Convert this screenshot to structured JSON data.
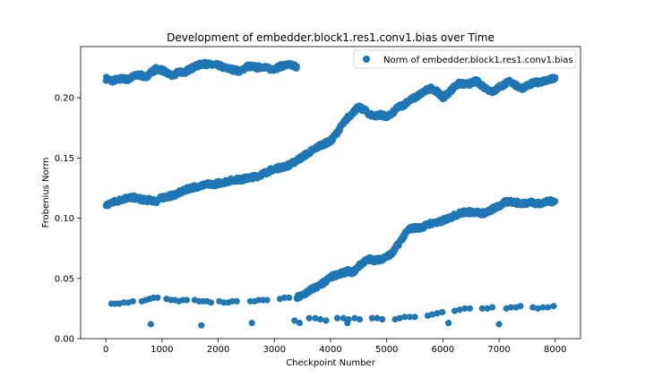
{
  "chart_data": {
    "type": "scatter",
    "title": "Development of embedder.block1.res1.conv1.bias over Time",
    "xlabel": "Checkpoint Number",
    "ylabel": "Frobenius Norm",
    "xlim": [
      -450,
      8450
    ],
    "ylim": [
      0.0,
      0.2425
    ],
    "xticks": [
      0,
      1000,
      2000,
      3000,
      4000,
      5000,
      6000,
      7000,
      8000
    ],
    "yticks": [
      0.0,
      0.05,
      0.1,
      0.15,
      0.2
    ],
    "ytick_labels": [
      "0.00",
      "0.05",
      "0.10",
      "0.15",
      "0.20"
    ],
    "grid": false,
    "legend_position": "top-right",
    "series": [
      {
        "name": "Norm of embedder.block1.res1.conv1.bias",
        "color": "#1f77b4",
        "dense_bands": [
          {
            "x": [
              0,
              100,
              200,
              300,
              400,
              500,
              600,
              700,
              800,
              900,
              1000,
              1100,
              1200,
              1300,
              1400,
              1500,
              1600,
              1700,
              1800,
              1900,
              2000,
              2100,
              2200,
              2300,
              2400,
              2500,
              2600,
              2700,
              2800,
              2900,
              3000,
              3100,
              3200,
              3300,
              3400
            ],
            "y": [
              0.216,
              0.214,
              0.215,
              0.216,
              0.215,
              0.218,
              0.219,
              0.217,
              0.221,
              0.224,
              0.223,
              0.22,
              0.218,
              0.222,
              0.221,
              0.224,
              0.226,
              0.228,
              0.228,
              0.227,
              0.227,
              0.225,
              0.224,
              0.223,
              0.222,
              0.226,
              0.226,
              0.225,
              0.226,
              0.224,
              0.224,
              0.226,
              0.227,
              0.227,
              0.226
            ]
          },
          {
            "x": [
              0,
              100,
              200,
              300,
              400,
              500,
              600,
              700,
              800,
              900,
              1000,
              1100,
              1200,
              1300,
              1400,
              1500,
              1600,
              1700,
              1800,
              1900,
              2000,
              2100,
              2200,
              2300,
              2400,
              2500,
              2600,
              2700,
              2800,
              2900,
              3000,
              3100,
              3200,
              3300,
              3400,
              3500,
              3600,
              3700,
              3800,
              3900,
              4000,
              4100,
              4200,
              4300,
              4400,
              4500,
              4600,
              4700,
              4800,
              4900,
              5000,
              5100,
              5200,
              5300,
              5400,
              5500,
              5600,
              5700,
              5800,
              5900,
              6000,
              6100,
              6200,
              6300,
              6400,
              6500,
              6600,
              6700,
              6800,
              6900,
              7000,
              7100,
              7200,
              7300,
              7400,
              7500,
              7600,
              7700,
              7800,
              7900,
              8000
            ],
            "y": [
              0.11,
              0.113,
              0.114,
              0.116,
              0.117,
              0.117,
              0.116,
              0.115,
              0.115,
              0.114,
              0.117,
              0.118,
              0.119,
              0.121,
              0.123,
              0.125,
              0.126,
              0.127,
              0.128,
              0.128,
              0.129,
              0.13,
              0.131,
              0.132,
              0.132,
              0.133,
              0.134,
              0.135,
              0.137,
              0.139,
              0.141,
              0.142,
              0.143,
              0.145,
              0.148,
              0.151,
              0.154,
              0.157,
              0.16,
              0.162,
              0.164,
              0.17,
              0.177,
              0.183,
              0.188,
              0.192,
              0.19,
              0.186,
              0.185,
              0.186,
              0.184,
              0.187,
              0.192,
              0.194,
              0.198,
              0.2,
              0.203,
              0.206,
              0.208,
              0.205,
              0.2,
              0.204,
              0.209,
              0.212,
              0.211,
              0.212,
              0.214,
              0.21,
              0.207,
              0.205,
              0.209,
              0.211,
              0.214,
              0.21,
              0.208,
              0.21,
              0.212,
              0.213,
              0.214,
              0.215,
              0.216
            ]
          },
          {
            "x": [
              3400,
              3500,
              3600,
              3700,
              3800,
              3900,
              4000,
              4100,
              4200,
              4300,
              4400,
              4500,
              4600,
              4700,
              4800,
              4900,
              5000,
              5100,
              5200,
              5300,
              5400,
              5500,
              5600,
              5700,
              5800,
              5900,
              6000,
              6100,
              6200,
              6300,
              6400,
              6500,
              6600,
              6700,
              6800,
              6900,
              7000,
              7100,
              7200,
              7300,
              7400,
              7500,
              7600,
              7700,
              7800,
              7900,
              8000
            ],
            "y": [
              0.034,
              0.036,
              0.039,
              0.042,
              0.044,
              0.047,
              0.051,
              0.053,
              0.054,
              0.056,
              0.055,
              0.06,
              0.064,
              0.066,
              0.065,
              0.066,
              0.068,
              0.071,
              0.078,
              0.085,
              0.091,
              0.092,
              0.092,
              0.094,
              0.096,
              0.096,
              0.098,
              0.1,
              0.102,
              0.104,
              0.105,
              0.105,
              0.105,
              0.104,
              0.105,
              0.108,
              0.11,
              0.113,
              0.114,
              0.113,
              0.112,
              0.113,
              0.113,
              0.112,
              0.113,
              0.114,
              0.114
            ]
          }
        ],
        "sparse_points": [
          [
            100,
            0.029
          ],
          [
            170,
            0.029
          ],
          [
            240,
            0.029
          ],
          [
            320,
            0.03
          ],
          [
            400,
            0.03
          ],
          [
            480,
            0.031
          ],
          [
            640,
            0.031
          ],
          [
            710,
            0.032
          ],
          [
            780,
            0.033
          ],
          [
            850,
            0.034
          ],
          [
            920,
            0.034
          ],
          [
            1080,
            0.033
          ],
          [
            1160,
            0.032
          ],
          [
            1230,
            0.032
          ],
          [
            1300,
            0.031
          ],
          [
            1370,
            0.032
          ],
          [
            1440,
            0.032
          ],
          [
            1580,
            0.032
          ],
          [
            1660,
            0.031
          ],
          [
            1730,
            0.031
          ],
          [
            1800,
            0.031
          ],
          [
            1870,
            0.03
          ],
          [
            2020,
            0.031
          ],
          [
            2100,
            0.03
          ],
          [
            2180,
            0.03
          ],
          [
            2250,
            0.031
          ],
          [
            2330,
            0.031
          ],
          [
            2570,
            0.031
          ],
          [
            2650,
            0.031
          ],
          [
            2720,
            0.032
          ],
          [
            2800,
            0.032
          ],
          [
            2870,
            0.032
          ],
          [
            3100,
            0.033
          ],
          [
            3180,
            0.034
          ],
          [
            3260,
            0.034
          ],
          [
            3360,
            0.015
          ],
          [
            3450,
            0.013
          ],
          [
            3620,
            0.017
          ],
          [
            3730,
            0.017
          ],
          [
            3820,
            0.016
          ],
          [
            3920,
            0.015
          ],
          [
            4120,
            0.017
          ],
          [
            4230,
            0.017
          ],
          [
            4320,
            0.016
          ],
          [
            4430,
            0.017
          ],
          [
            4520,
            0.016
          ],
          [
            4740,
            0.017
          ],
          [
            4830,
            0.017
          ],
          [
            4920,
            0.016
          ],
          [
            5150,
            0.016
          ],
          [
            5230,
            0.017
          ],
          [
            5320,
            0.018
          ],
          [
            5410,
            0.018
          ],
          [
            5500,
            0.018
          ],
          [
            5730,
            0.019
          ],
          [
            5810,
            0.02
          ],
          [
            5900,
            0.021
          ],
          [
            5990,
            0.022
          ],
          [
            6210,
            0.023
          ],
          [
            6300,
            0.024
          ],
          [
            6390,
            0.025
          ],
          [
            6480,
            0.025
          ],
          [
            6700,
            0.025
          ],
          [
            6790,
            0.025
          ],
          [
            6880,
            0.026
          ],
          [
            7130,
            0.025
          ],
          [
            7210,
            0.026
          ],
          [
            7300,
            0.026
          ],
          [
            7380,
            0.027
          ],
          [
            7600,
            0.026
          ],
          [
            7690,
            0.025
          ],
          [
            7780,
            0.026
          ],
          [
            7870,
            0.026
          ],
          [
            7970,
            0.027
          ],
          [
            800,
            0.012
          ],
          [
            1700,
            0.011
          ],
          [
            2600,
            0.013
          ],
          [
            4300,
            0.013
          ],
          [
            6100,
            0.013
          ],
          [
            7000,
            0.012
          ]
        ]
      }
    ]
  }
}
